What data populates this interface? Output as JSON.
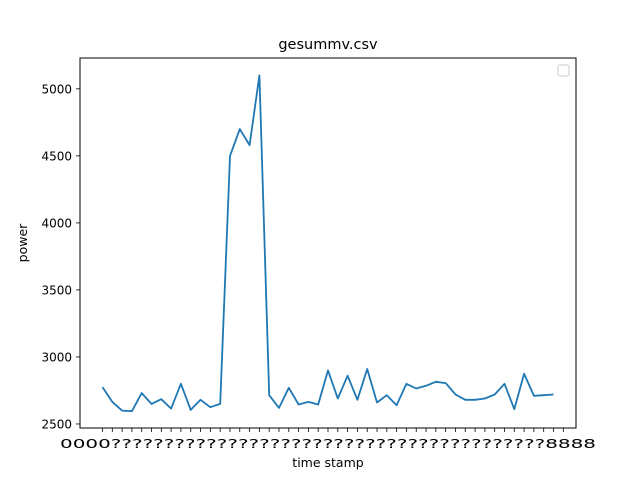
{
  "chart_data": {
    "type": "line",
    "title": "gesummv.csv",
    "xlabel": "time stamp",
    "ylabel": "power",
    "ylim": [
      2470,
      5230
    ],
    "yticks": [
      2500,
      3000,
      3500,
      4000,
      4500,
      5000
    ],
    "grid": false,
    "legend": "upper right (empty box)",
    "x_tick_count": 48,
    "x_tick_labels_overlapping": "0000?????????????????????????????????????????8888",
    "series": [
      {
        "color": "#1f77b4",
        "values": [
          2775,
          2665,
          2600,
          2595,
          2730,
          2650,
          2685,
          2615,
          2800,
          2605,
          2680,
          2625,
          2650,
          4500,
          4700,
          4580,
          5100,
          2715,
          2620,
          2770,
          2645,
          2665,
          2645,
          2900,
          2690,
          2860,
          2680,
          2910,
          2660,
          2715,
          2640,
          2800,
          2765,
          2785,
          2815,
          2805,
          2720,
          2680,
          2680,
          2690,
          2720,
          2800,
          2610,
          2875,
          2710,
          2715,
          2720
        ]
      }
    ]
  }
}
